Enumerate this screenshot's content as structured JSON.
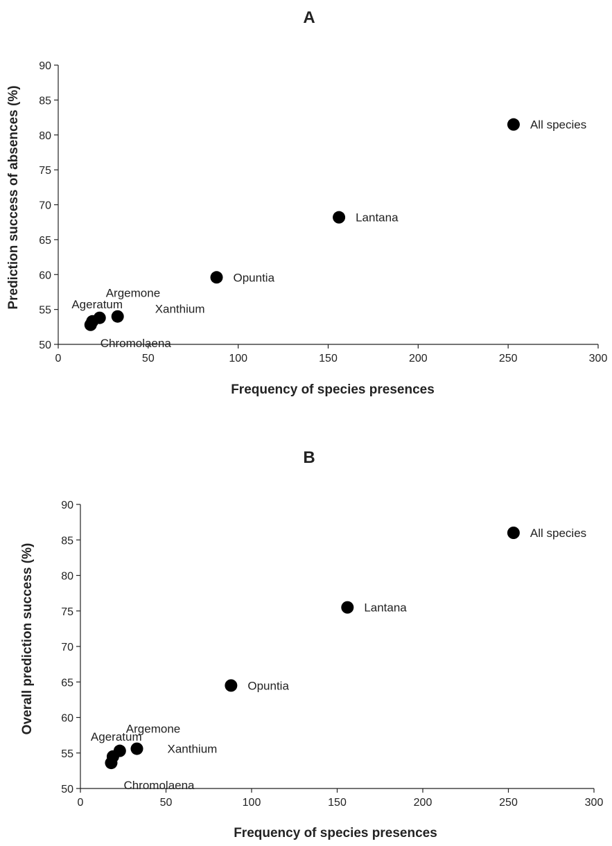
{
  "chart_data": [
    {
      "type": "scatter",
      "title": "A",
      "xlabel": "Frequency of species presences",
      "ylabel": "Prediction success of absences (%)",
      "xlim": [
        0,
        300
      ],
      "ylim": [
        50,
        90
      ],
      "xticks": [
        0,
        50,
        100,
        150,
        200,
        250,
        300
      ],
      "yticks": [
        50,
        55,
        60,
        65,
        70,
        75,
        80,
        85,
        90
      ],
      "grid": false,
      "points": [
        {
          "label": "All species",
          "x": 253,
          "y": 81.5
        },
        {
          "label": "Lantana",
          "x": 156,
          "y": 68.2
        },
        {
          "label": "Opuntia",
          "x": 88,
          "y": 59.6
        },
        {
          "label": "Xanthium",
          "x": 33,
          "y": 54.0
        },
        {
          "label": "Argemone",
          "x": 23,
          "y": 53.8
        },
        {
          "label": "Ageratum",
          "x": 19,
          "y": 53.3
        },
        {
          "label": "Chromolaena",
          "x": 18,
          "y": 52.8
        }
      ]
    },
    {
      "type": "scatter",
      "title": "B",
      "xlabel": "Frequency of species presences",
      "ylabel": "Overall prediction success  (%)",
      "xlim": [
        0,
        300
      ],
      "ylim": [
        50,
        90
      ],
      "xticks": [
        0,
        50,
        100,
        150,
        200,
        250,
        300
      ],
      "yticks": [
        50,
        55,
        60,
        65,
        70,
        75,
        80,
        85,
        90
      ],
      "grid": false,
      "points": [
        {
          "label": "All species",
          "x": 253,
          "y": 86.0
        },
        {
          "label": "Lantana",
          "x": 156,
          "y": 75.5
        },
        {
          "label": "Opuntia",
          "x": 88,
          "y": 64.5
        },
        {
          "label": "Xanthium",
          "x": 33,
          "y": 55.6
        },
        {
          "label": "Argemone",
          "x": 23,
          "y": 55.3
        },
        {
          "label": "Ageratum",
          "x": 19,
          "y": 54.5
        },
        {
          "label": "Chromolaena",
          "x": 18,
          "y": 53.6
        }
      ]
    }
  ]
}
